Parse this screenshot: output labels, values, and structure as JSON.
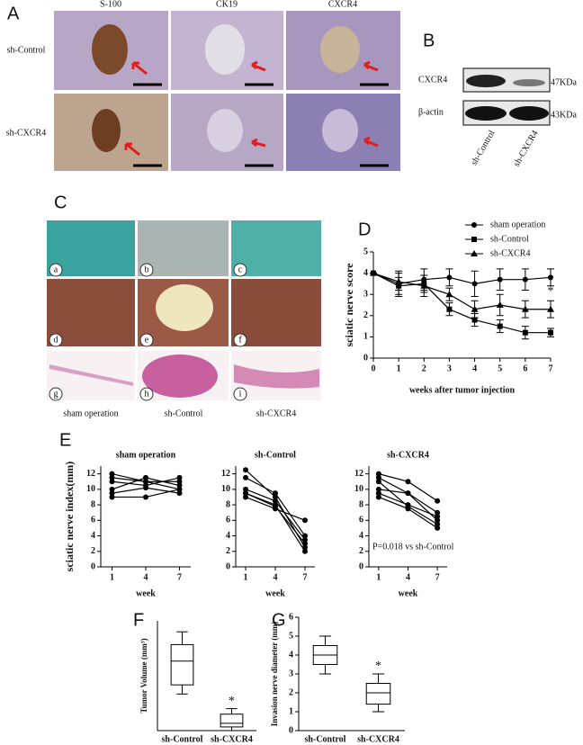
{
  "panel_letters": [
    "A",
    "B",
    "C",
    "D",
    "E",
    "F",
    "G"
  ],
  "panel_a": {
    "columns": [
      "S-100",
      "CK19",
      "CXCR4"
    ],
    "rows": [
      "sh-Control",
      "sh-CXCR4"
    ]
  },
  "panel_b": {
    "bands": [
      "CXCR4",
      "β-actin"
    ],
    "sizes": [
      "47KDa",
      "43KDa"
    ],
    "lanes": [
      "sh-Control",
      "sh-CXCR4"
    ]
  },
  "panel_c": {
    "tiles": [
      "a",
      "b",
      "c",
      "d",
      "e",
      "f",
      "g",
      "h",
      "i"
    ],
    "captions": [
      "sham operation",
      "sh-Control",
      "sh-CXCR4"
    ]
  },
  "chart_data": [
    {
      "type": "line",
      "ylabel": "sciatic nerve score",
      "xlabel": "weeks after tumor injection",
      "x": [
        0,
        1,
        2,
        3,
        4,
        5,
        6,
        7
      ],
      "xlim": [
        0,
        7
      ],
      "xticks": [
        0,
        1,
        2,
        3,
        4,
        5,
        6,
        7
      ],
      "ylim": [
        0,
        5
      ],
      "yticks": [
        0,
        1,
        2,
        3,
        4,
        5
      ],
      "legend": "upper right",
      "annotation": "*",
      "series": [
        {
          "name": "sham operation",
          "color": "#000000",
          "marker": "circle",
          "values": [
            4,
            3.5,
            3.7,
            3.8,
            3.5,
            3.7,
            3.7,
            3.8
          ],
          "errors": [
            0,
            0.6,
            0.5,
            0.4,
            0.6,
            0.5,
            0.5,
            0.4
          ]
        },
        {
          "name": "sh-Control",
          "color": "#000000",
          "marker": "square",
          "values": [
            4,
            3.4,
            3.5,
            2.3,
            1.8,
            1.5,
            1.2,
            1.2
          ],
          "errors": [
            0,
            0.4,
            0.4,
            0.3,
            0.3,
            0.3,
            0.3,
            0.2
          ]
        },
        {
          "name": "sh-CXCR4",
          "color": "#000000",
          "marker": "triangle",
          "values": [
            4,
            3.6,
            3.4,
            3.0,
            2.3,
            2.5,
            2.3,
            2.3
          ],
          "errors": [
            0,
            0.4,
            0.5,
            0.3,
            0.4,
            0.5,
            0.4,
            0.4
          ]
        }
      ]
    },
    {
      "type": "line",
      "title": "sham operation",
      "ylabel": "sciatic nerve index(mm)",
      "xlabel": "week",
      "x": [
        1,
        4,
        7
      ],
      "xlim": [
        0,
        8
      ],
      "xticks": [
        1,
        4,
        7
      ],
      "ylim": [
        0,
        13
      ],
      "yticks": [
        0,
        2,
        4,
        6,
        8,
        10,
        12
      ],
      "series": [
        {
          "color": "#000000",
          "marker": "circle",
          "values": [
            12,
            11,
            11
          ]
        },
        {
          "color": "#000000",
          "marker": "circle",
          "values": [
            11.5,
            11,
            10
          ]
        },
        {
          "color": "#000000",
          "marker": "circle",
          "values": [
            11,
            10.5,
            11.5
          ]
        },
        {
          "color": "#000000",
          "marker": "circle",
          "values": [
            10,
            11.5,
            10.5
          ]
        },
        {
          "color": "#000000",
          "marker": "circle",
          "values": [
            9.5,
            10.2,
            9.5
          ]
        },
        {
          "color": "#000000",
          "marker": "circle",
          "values": [
            9,
            9,
            10
          ]
        }
      ]
    },
    {
      "type": "line",
      "title": "sh-Control",
      "xlabel": "week",
      "x": [
        1,
        4,
        7
      ],
      "xlim": [
        0,
        8
      ],
      "xticks": [
        1,
        4,
        7
      ],
      "ylim": [
        0,
        13
      ],
      "yticks": [
        0,
        2,
        4,
        6,
        8,
        10,
        12
      ],
      "series": [
        {
          "color": "#000000",
          "marker": "circle",
          "values": [
            12.5,
            9,
            2.5
          ]
        },
        {
          "color": "#000000",
          "marker": "circle",
          "values": [
            11.5,
            9.5,
            4
          ]
        },
        {
          "color": "#000000",
          "marker": "circle",
          "values": [
            10,
            8.5,
            3.5
          ]
        },
        {
          "color": "#000000",
          "marker": "circle",
          "values": [
            9.5,
            8,
            2
          ]
        },
        {
          "color": "#000000",
          "marker": "circle",
          "values": [
            9,
            7.5,
            6
          ]
        },
        {
          "color": "#000000",
          "marker": "circle",
          "values": [
            9.5,
            7.8,
            3
          ]
        }
      ]
    },
    {
      "type": "line",
      "title": "sh-CXCR4",
      "xlabel": "week",
      "x": [
        1,
        4,
        7
      ],
      "xlim": [
        0,
        8
      ],
      "xticks": [
        1,
        4,
        7
      ],
      "ylim": [
        0,
        13
      ],
      "yticks": [
        0,
        2,
        4,
        6,
        8,
        10,
        12
      ],
      "annotation": "P=0.018 vs sh-Control",
      "series": [
        {
          "color": "#000000",
          "marker": "circle",
          "values": [
            12,
            11,
            8.5
          ]
        },
        {
          "color": "#000000",
          "marker": "circle",
          "values": [
            11.5,
            9.5,
            6
          ]
        },
        {
          "color": "#000000",
          "marker": "circle",
          "values": [
            10,
            9.5,
            7
          ]
        },
        {
          "color": "#000000",
          "marker": "circle",
          "values": [
            9.5,
            8,
            6.5
          ]
        },
        {
          "color": "#000000",
          "marker": "circle",
          "values": [
            9,
            7.5,
            5
          ]
        },
        {
          "color": "#000000",
          "marker": "circle",
          "values": [
            11,
            7.8,
            5.5
          ]
        }
      ]
    },
    {
      "type": "box",
      "ylabel": "Tumor Volume  (mm³)",
      "categories": [
        "sh-Control",
        "sh-CXCR4"
      ],
      "ylim": [
        0,
        30
      ],
      "color": "#000000",
      "annotation": "*",
      "boxes": [
        {
          "min": 10,
          "q1": 12.5,
          "median": 19,
          "q3": 23.5,
          "max": 27
        },
        {
          "min": 0,
          "q1": 1,
          "median": 2,
          "q3": 4.5,
          "max": 6
        }
      ]
    },
    {
      "type": "box",
      "ylabel": "Invasion nerve diameter (mm)",
      "categories": [
        "sh-Control",
        "sh-CXCR4"
      ],
      "ylim": [
        0,
        6
      ],
      "yticks": [
        0,
        1,
        2,
        3,
        4,
        5,
        6
      ],
      "color": "#000000",
      "annotation": "*",
      "boxes": [
        {
          "min": 3,
          "q1": 3.5,
          "median": 4,
          "q3": 4.5,
          "max": 5
        },
        {
          "min": 1,
          "q1": 1.4,
          "median": 2,
          "q3": 2.5,
          "max": 3
        }
      ]
    }
  ]
}
